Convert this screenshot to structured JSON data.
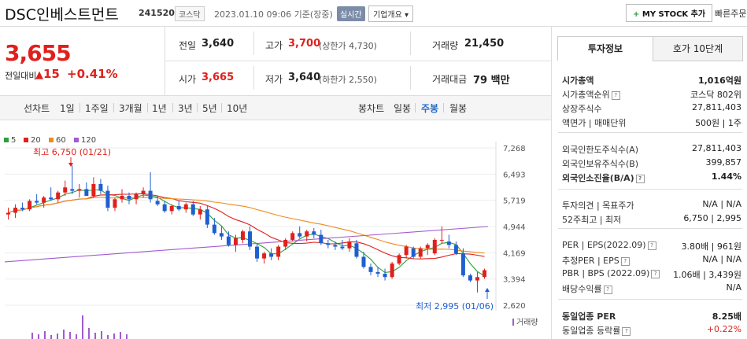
{
  "header": {
    "company": "DSC인베스트먼트",
    "code": "241520",
    "market": "코스닥",
    "datetime": "2023.01.10 09:06 기준(장중)",
    "realtime": "실시간",
    "overview": "기업개요",
    "mystock": "MY STOCK 추가",
    "quickorder": "빠른주문"
  },
  "price": {
    "current": "3,655",
    "change_label": "전일대비",
    "change_value": "15",
    "change_pct": "+0.41%"
  },
  "quote": {
    "prev_label": "전일",
    "prev": "3,640",
    "high_label": "고가",
    "high": "3,700",
    "upper": "(상한가 4,730)",
    "volume_label": "거래량",
    "volume": "21,450",
    "open_label": "시가",
    "open": "3,665",
    "low_label": "저가",
    "low": "3,640",
    "lower": "(하한가 2,550)",
    "amount_label": "거래대금",
    "amount": "79 백만"
  },
  "periodbar": {
    "line_label": "선차트",
    "periods": [
      "1일",
      "1주일",
      "3개월",
      "1년",
      "3년",
      "5년",
      "10년"
    ],
    "candle_label": "봉차트",
    "candles": [
      "일봉",
      "주봉",
      "월봉"
    ],
    "active_candle": "주봉"
  },
  "chart_data": {
    "type": "candlestick",
    "legend": [
      {
        "name": "5",
        "color": "#2e9e3f"
      },
      {
        "name": "20",
        "color": "#e0201c"
      },
      {
        "name": "60",
        "color": "#f08a1c"
      },
      {
        "name": "120",
        "color": "#a25bd0"
      }
    ],
    "y_ticks": [
      "7,268",
      "6,493",
      "5,719",
      "4,944",
      "4,169",
      "3,394",
      "2,620"
    ],
    "ylim": [
      2620,
      7268
    ],
    "high_annotation": "최고 6,750 (01/21)",
    "low_annotation": "최저 2,995 (01/06)",
    "volume_label": "거래량",
    "up_color": "#e0201c",
    "down_color": "#1e5fd0",
    "candles": [
      [
        5300,
        5500,
        5150,
        5350
      ],
      [
        5350,
        5600,
        5200,
        5500
      ],
      [
        5500,
        5650,
        5400,
        5450
      ],
      [
        5450,
        5750,
        5400,
        5700
      ],
      [
        5700,
        5900,
        5600,
        5650
      ],
      [
        5650,
        5850,
        5500,
        5800
      ],
      [
        5800,
        6100,
        5700,
        5750
      ],
      [
        5750,
        6000,
        5650,
        5950
      ],
      [
        5950,
        6300,
        5850,
        6100
      ],
      [
        6050,
        6750,
        5900,
        6000
      ],
      [
        6000,
        6200,
        5800,
        6050
      ],
      [
        6050,
        6250,
        5850,
        5850
      ],
      [
        5850,
        6400,
        5800,
        6200
      ],
      [
        6200,
        6350,
        5900,
        6000
      ],
      [
        6000,
        6150,
        5400,
        5500
      ],
      [
        5500,
        5800,
        5400,
        5750
      ],
      [
        5750,
        6050,
        5650,
        5850
      ],
      [
        5850,
        5950,
        5600,
        5750
      ],
      [
        5750,
        5950,
        5600,
        5900
      ],
      [
        5900,
        6100,
        5800,
        6000
      ],
      [
        6000,
        6550,
        5650,
        5750
      ],
      [
        5700,
        5850,
        5550,
        5600
      ],
      [
        5600,
        5700,
        5350,
        5400
      ],
      [
        5400,
        5600,
        5300,
        5550
      ],
      [
        5550,
        5700,
        5400,
        5450
      ],
      [
        5450,
        5650,
        5350,
        5600
      ],
      [
        5600,
        5700,
        5250,
        5300
      ],
      [
        5300,
        5550,
        5150,
        5450
      ],
      [
        5450,
        5550,
        4900,
        5000
      ],
      [
        5000,
        5200,
        4700,
        4750
      ],
      [
        4750,
        4950,
        4550,
        4650
      ],
      [
        4650,
        4800,
        4350,
        4400
      ],
      [
        4400,
        4700,
        4200,
        4600
      ],
      [
        4550,
        4850,
        4450,
        4800
      ],
      [
        4800,
        4950,
        4250,
        4350
      ],
      [
        4350,
        4450,
        3900,
        4000
      ],
      [
        4000,
        4200,
        3850,
        4150
      ],
      [
        4150,
        4300,
        3950,
        4050
      ],
      [
        4050,
        4400,
        3950,
        4350
      ],
      [
        4350,
        4600,
        4250,
        4550
      ],
      [
        4550,
        4800,
        4500,
        4750
      ],
      [
        4750,
        4950,
        4600,
        4650
      ],
      [
        4650,
        4850,
        4500,
        4800
      ],
      [
        4800,
        4900,
        4600,
        4700
      ],
      [
        4700,
        4850,
        4400,
        4450
      ],
      [
        4450,
        4550,
        4300,
        4400
      ],
      [
        4400,
        4500,
        4250,
        4350
      ],
      [
        4350,
        4550,
        4250,
        4300
      ],
      [
        4300,
        4600,
        4200,
        4500
      ],
      [
        4450,
        4550,
        4000,
        4050
      ],
      [
        4050,
        4200,
        3700,
        3750
      ],
      [
        3750,
        3850,
        3500,
        3600
      ],
      [
        3600,
        3750,
        3450,
        3550
      ],
      [
        3550,
        3700,
        3350,
        3450
      ],
      [
        3450,
        3900,
        3400,
        3850
      ],
      [
        3850,
        4150,
        3800,
        4100
      ],
      [
        4100,
        4400,
        4000,
        4350
      ],
      [
        4300,
        4350,
        4000,
        4050
      ],
      [
        4050,
        4350,
        4000,
        4300
      ],
      [
        4300,
        4450,
        4100,
        4400
      ],
      [
        4150,
        4600,
        4100,
        4550
      ],
      [
        4550,
        4950,
        4450,
        4550
      ],
      [
        4500,
        4700,
        4300,
        4400
      ],
      [
        4400,
        4500,
        4100,
        4150
      ],
      [
        4150,
        4300,
        3450,
        3500
      ],
      [
        3500,
        3550,
        3300,
        3350
      ],
      [
        3350,
        3600,
        2995,
        3450
      ],
      [
        3450,
        3700,
        3400,
        3655
      ]
    ]
  },
  "right": {
    "tab_active": "투자정보",
    "tab_other": "호가 10단계",
    "rows": [
      {
        "label": "시가총액",
        "value": "1,016억원",
        "bold": true
      },
      {
        "label": "시가총액순위",
        "value": "코스닥 802위"
      },
      {
        "label": "상장주식수",
        "value": "27,811,403"
      },
      {
        "label": "액면가 | 매매단위",
        "value": "500원 | 1주"
      },
      {
        "label": "외국인한도주식수(A)",
        "value": "27,811,403"
      },
      {
        "label": "외국인보유주식수(B)",
        "value": "399,857"
      },
      {
        "label": "외국인소진율(B/A)",
        "value": "1.44%",
        "bold": true
      },
      {
        "label": "투자의견 | 목표주가",
        "value": "N/A | N/A"
      },
      {
        "label": "52주최고 | 최저",
        "value": "6,750 | 2,995"
      },
      {
        "label": "PER | EPS(2022.09)",
        "value": "3.80배 | 961원"
      },
      {
        "label": "추정PER | EPS",
        "value": "N/A | N/A"
      },
      {
        "label": "PBR | BPS (2022.09)",
        "value": "1.06배 | 3,439원"
      },
      {
        "label": "배당수익률",
        "value": "N/A"
      },
      {
        "label": "동일업종 PER",
        "value": "8.25배",
        "bold": true
      },
      {
        "label": "동일업종 등락률",
        "value": "+0.22%"
      }
    ]
  }
}
